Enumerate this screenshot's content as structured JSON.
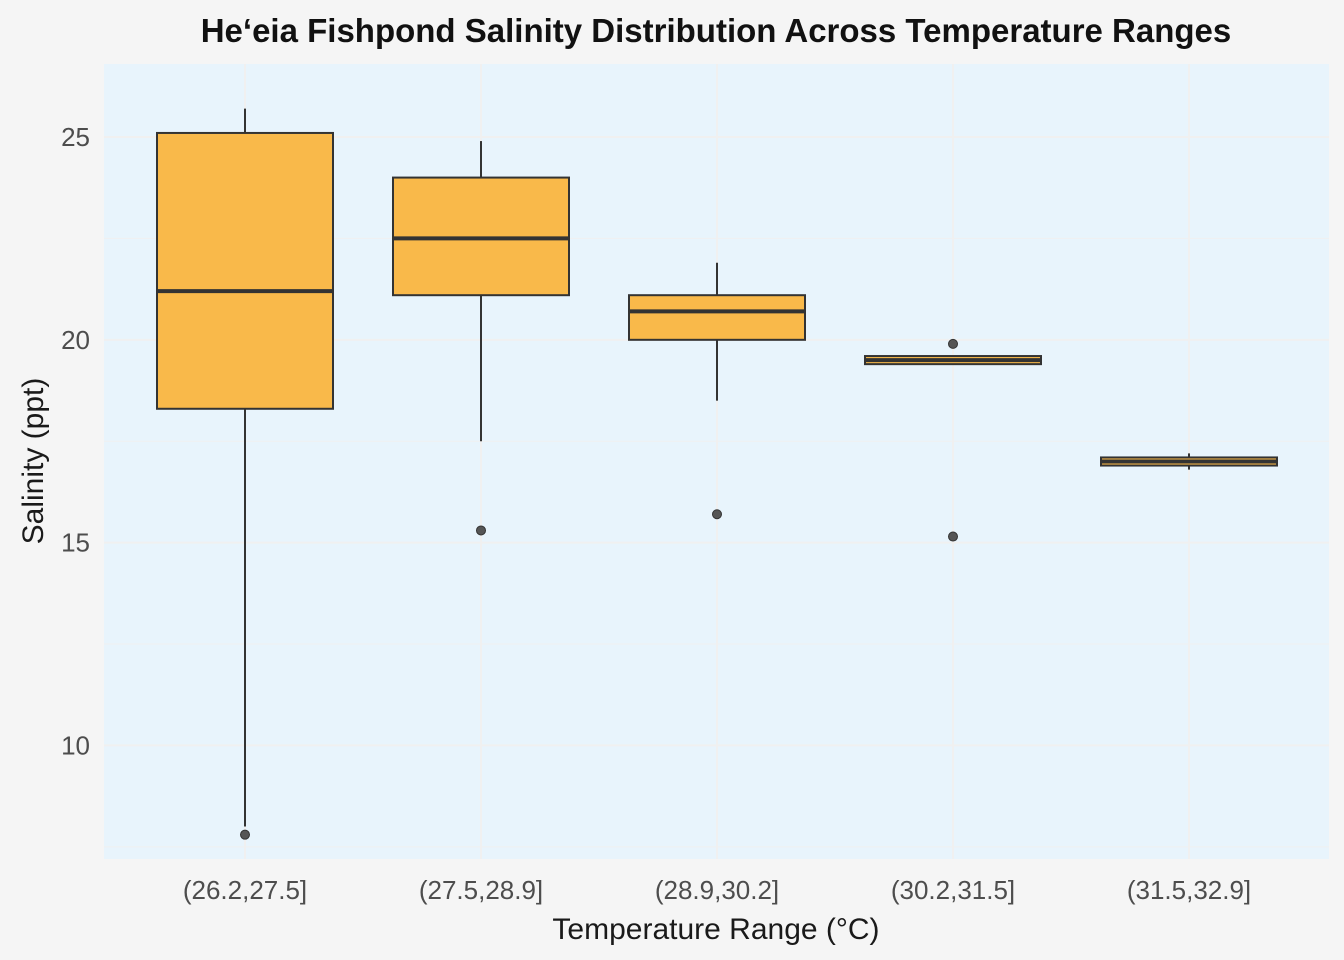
{
  "chart_data": {
    "type": "box",
    "title": "He‘eia Fishpond Salinity Distribution Across Temperature Ranges",
    "xlabel": "Temperature Range (°C)",
    "ylabel": "Salinity (ppt)",
    "ylim": [
      7.2,
      26.8
    ],
    "yticks": [
      10,
      15,
      20,
      25
    ],
    "grid": true,
    "categories": [
      "(26.2,27.5]",
      "(27.5,28.9]",
      "(28.9,30.2]",
      "(30.2,31.5]",
      "(31.5,32.9]"
    ],
    "boxes": [
      {
        "whisker_low": 8.0,
        "q1": 18.3,
        "median": 21.2,
        "q3": 25.1,
        "whisker_high": 25.7,
        "outliers": [
          7.8
        ]
      },
      {
        "whisker_low": 17.5,
        "q1": 21.1,
        "median": 22.5,
        "q3": 24.0,
        "whisker_high": 24.9,
        "outliers": [
          15.3
        ]
      },
      {
        "whisker_low": 18.5,
        "q1": 20.0,
        "median": 20.7,
        "q3": 21.1,
        "whisker_high": 21.9,
        "outliers": [
          15.7
        ]
      },
      {
        "whisker_low": 19.4,
        "q1": 19.4,
        "median": 19.5,
        "q3": 19.6,
        "whisker_high": 19.6,
        "outliers": [
          19.9,
          15.15
        ]
      },
      {
        "whisker_low": 16.8,
        "q1": 16.9,
        "median": 17.0,
        "q3": 17.1,
        "whisker_high": 17.2,
        "outliers": []
      }
    ],
    "colors": {
      "box_fill": "#f9b94a",
      "box_stroke": "#333333",
      "panel_bg": "#e8f4fc",
      "page_bg": "#f5f5f5",
      "grid": "#f0f0f0",
      "outlier": "#555555"
    }
  }
}
